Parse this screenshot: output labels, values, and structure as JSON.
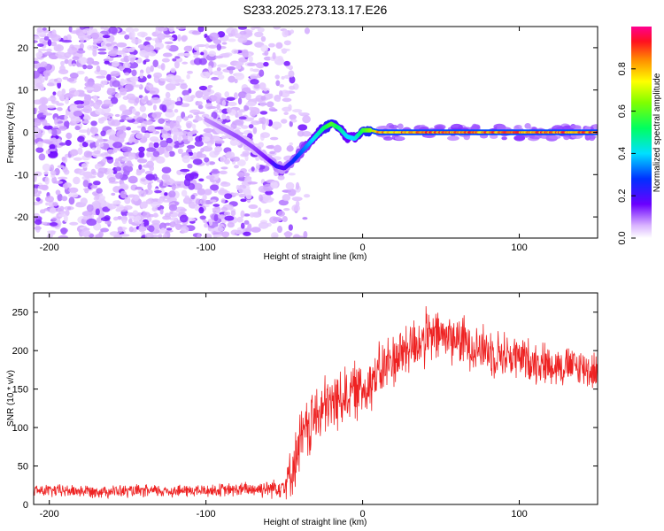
{
  "title": "S233.2025.273.13.17.E26",
  "chart_data": [
    {
      "id": "spectrogram",
      "type": "heatmap",
      "xlabel": "Height of straight line (km)",
      "ylabel": "Frequency (Hz)",
      "xlim": [
        -210,
        150
      ],
      "ylim": [
        -25,
        25
      ],
      "xticks": [
        -200,
        -100,
        0,
        100
      ],
      "yticks": [
        -20,
        -10,
        0,
        10,
        20
      ],
      "xtick_labels": [
        "-200",
        "-100",
        "0",
        "100"
      ],
      "ytick_labels": [
        "-20",
        "-10",
        "0",
        "10",
        "20"
      ],
      "description_of_signal": "noise (low amplitude) for x < -45 km; tracked tone drifting from +3 Hz near -100 km down to -8 Hz near -55 km, up to +2 Hz near -20 km, settling at 0 Hz beyond ~5 km with high amplitude",
      "ridge": {
        "x": [
          -100,
          -90,
          -80,
          -70,
          -60,
          -55,
          -50,
          -45,
          -40,
          -35,
          -30,
          -25,
          -20,
          -15,
          -10,
          -5,
          0,
          5,
          10,
          40,
          80,
          120,
          150
        ],
        "y": [
          3,
          1,
          -1,
          -3.5,
          -6.5,
          -8,
          -8.5,
          -7,
          -5,
          -3,
          -1,
          1,
          2,
          1,
          -1,
          -1.5,
          0.5,
          0.5,
          0,
          0,
          0,
          0,
          0
        ],
        "amplitude": [
          0.08,
          0.1,
          0.12,
          0.12,
          0.15,
          0.22,
          0.18,
          0.25,
          0.3,
          0.35,
          0.42,
          0.5,
          0.6,
          0.5,
          0.4,
          0.4,
          0.55,
          0.65,
          0.8,
          0.85,
          0.85,
          0.85,
          0.85
        ]
      },
      "colorbar": {
        "label": "Normalized spectral amplitude",
        "range": [
          0.0,
          1.0
        ],
        "ticks": [
          0.0,
          0.2,
          0.4,
          0.6,
          0.8
        ],
        "tick_labels": [
          "0.0",
          "0.2",
          "0.4",
          "0.6",
          "0.8"
        ]
      }
    },
    {
      "id": "snr-plot",
      "type": "line",
      "xlabel": "Height of straight line (km)",
      "ylabel": "SNR (10 * v/v)",
      "xlim": [
        -210,
        150
      ],
      "ylim": [
        0,
        275
      ],
      "xticks": [
        -200,
        -100,
        0,
        100
      ],
      "yticks": [
        0,
        50,
        100,
        150,
        200,
        250
      ],
      "xtick_labels": [
        "-200",
        "-100",
        "0",
        "100"
      ],
      "ytick_labels": [
        "0",
        "50",
        "100",
        "150",
        "200",
        "250"
      ],
      "series": [
        {
          "name": "SNR",
          "color": "#ee2222",
          "envelope_x": [
            -210,
            -150,
            -100,
            -80,
            -60,
            -50,
            -45,
            -40,
            -30,
            -20,
            -10,
            0,
            10,
            20,
            30,
            40,
            50,
            60,
            80,
            100,
            120,
            140,
            150
          ],
          "envelope_mean": [
            18,
            17,
            18,
            19,
            21,
            25,
            45,
            80,
            115,
            130,
            145,
            150,
            170,
            190,
            205,
            215,
            220,
            215,
            200,
            190,
            182,
            178,
            172
          ],
          "envelope_spread": [
            10,
            10,
            10,
            11,
            14,
            20,
            40,
            50,
            50,
            50,
            45,
            45,
            45,
            45,
            45,
            45,
            40,
            40,
            38,
            35,
            32,
            30,
            30
          ]
        }
      ]
    }
  ]
}
